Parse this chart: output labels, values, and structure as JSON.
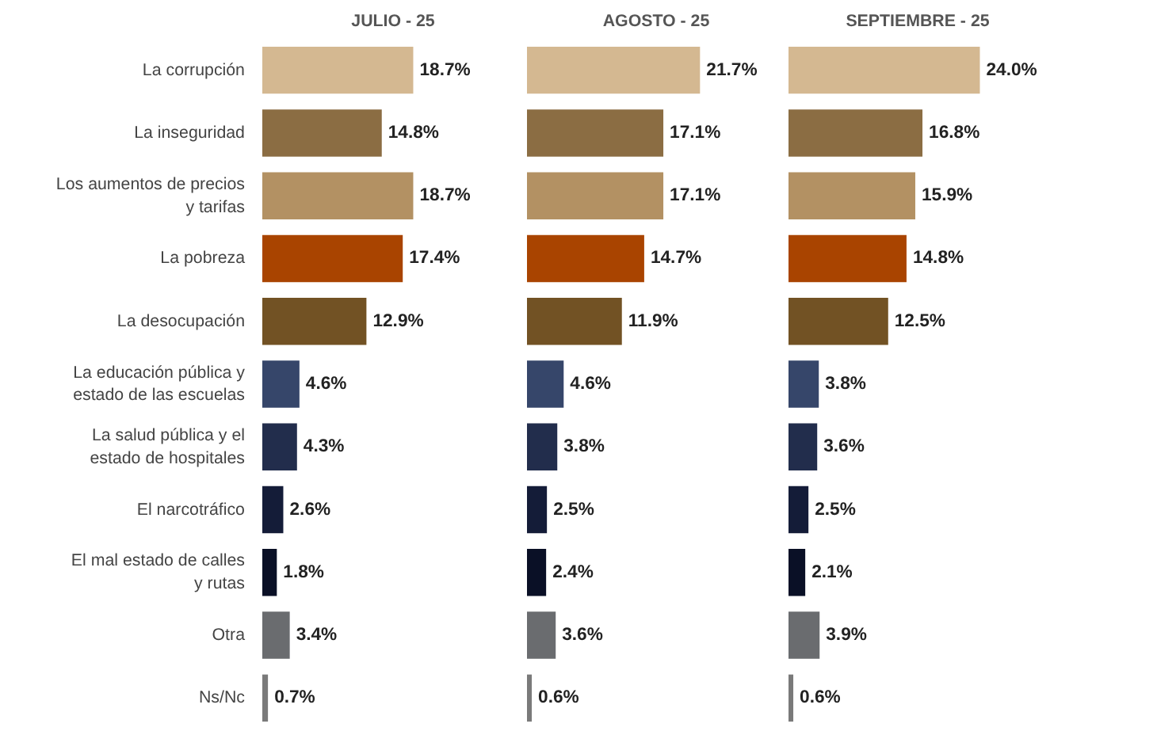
{
  "chart_data": [
    {
      "type": "bar",
      "orientation": "horizontal",
      "title": "JULIO - 25",
      "tick_labels": "y",
      "categories": [
        "La corrupción",
        "La inseguridad",
        "Los aumentos de precios y tarifas",
        "La pobreza",
        "La desocupación",
        "La educación pública y estado de las escuelas",
        "La salud pública y el estado de hospitales",
        "El narcotráfico",
        "El mal estado de calles y rutas",
        "Otra",
        "Ns/Nc"
      ],
      "values": [
        18.7,
        14.8,
        18.7,
        17.4,
        12.9,
        4.6,
        4.3,
        2.6,
        1.8,
        3.4,
        0.7
      ],
      "value_labels": [
        "18.7%",
        "14.8%",
        "18.7%",
        "17.4%",
        "12.9%",
        "4.6%",
        "4.3%",
        "2.6%",
        "1.8%",
        "3.4%",
        "0.7%"
      ],
      "colors": [
        "#d4b891",
        "#8b6d43",
        "#b39163",
        "#a94400",
        "#725224",
        "#36466a",
        "#222d4c",
        "#141c38",
        "#0a1026",
        "#6a6c6f",
        "#7a7a7a"
      ]
    },
    {
      "type": "bar",
      "orientation": "horizontal",
      "title": "AGOSTO - 25",
      "tick_labels": false,
      "categories": [
        "La corrupción",
        "La inseguridad",
        "Los aumentos de precios y tarifas",
        "La pobreza",
        "La desocupación",
        "La educación pública y estado de las escuelas",
        "La salud pública y el estado de hospitales",
        "El narcotráfico",
        "El mal estado de calles y rutas",
        "Otra",
        "Ns/Nc"
      ],
      "values": [
        21.7,
        17.1,
        17.1,
        14.7,
        11.9,
        4.6,
        3.8,
        2.5,
        2.4,
        3.6,
        0.6
      ],
      "value_labels": [
        "21.7%",
        "17.1%",
        "17.1%",
        "14.7%",
        "11.9%",
        "4.6%",
        "3.8%",
        "2.5%",
        "2.4%",
        "3.6%",
        "0.6%"
      ],
      "colors": [
        "#d4b891",
        "#8b6d43",
        "#b39163",
        "#a94400",
        "#725224",
        "#36466a",
        "#222d4c",
        "#141c38",
        "#0a1026",
        "#6a6c6f",
        "#7a7a7a"
      ]
    },
    {
      "type": "bar",
      "orientation": "horizontal",
      "title": "SEPTIEMBRE - 25",
      "tick_labels": false,
      "categories": [
        "La corrupción",
        "La inseguridad",
        "Los aumentos de precios y tarifas",
        "La pobreza",
        "La desocupación",
        "La educación pública y estado de las escuelas",
        "La salud pública y el estado de hospitales",
        "El narcotráfico",
        "El mal estado de calles y rutas",
        "Otra",
        "Ns/Nc"
      ],
      "values": [
        24.0,
        16.8,
        15.9,
        14.8,
        12.5,
        3.8,
        3.6,
        2.5,
        2.1,
        3.9,
        0.6
      ],
      "value_labels": [
        "24.0%",
        "16.8%",
        "15.9%",
        "14.8%",
        "12.5%",
        "3.8%",
        "3.6%",
        "2.5%",
        "2.1%",
        "3.9%",
        "0.6%"
      ],
      "colors": [
        "#d4b891",
        "#8b6d43",
        "#b39163",
        "#a94400",
        "#725224",
        "#36466a",
        "#222d4c",
        "#141c38",
        "#0a1026",
        "#6a6c6f",
        "#7a7a7a"
      ]
    }
  ]
}
